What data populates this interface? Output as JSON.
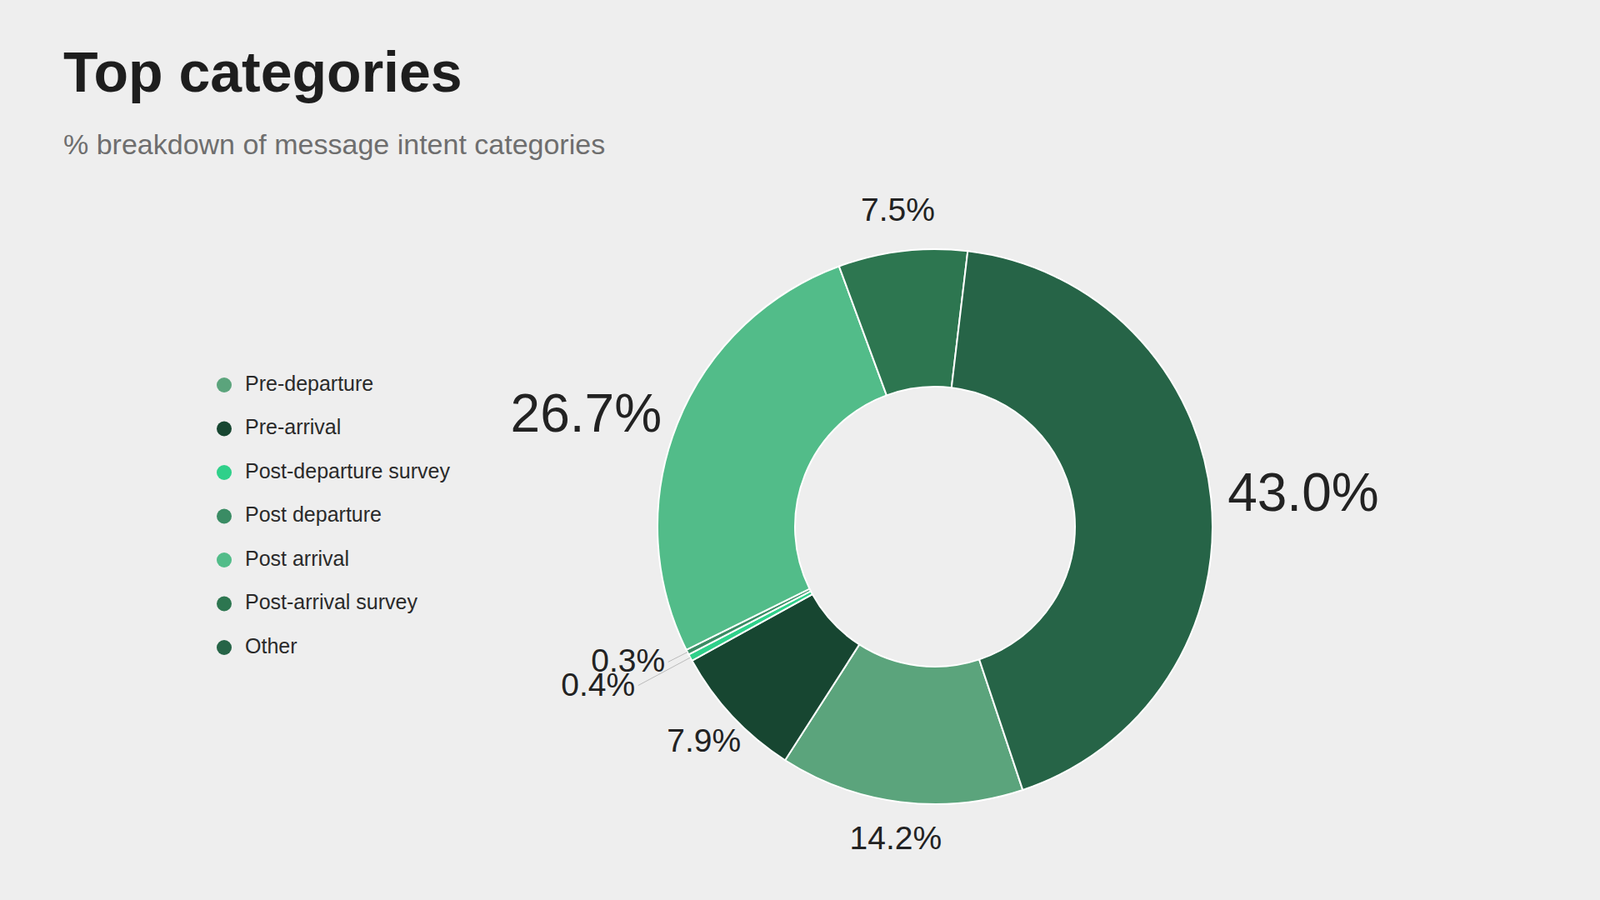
{
  "chart_data": {
    "type": "pie",
    "title": "Top categories",
    "subtitle": "% breakdown of message intent categories",
    "categories": [
      "Pre-departure",
      "Pre-arrival",
      "Post-departure survey",
      "Post departure",
      "Post arrival",
      "Post-arrival survey",
      "Other"
    ],
    "values": [
      14.2,
      7.9,
      0.4,
      0.3,
      26.7,
      7.5,
      43.0
    ],
    "value_labels": [
      "14.2%",
      "7.9%",
      "0.4%",
      "0.3%",
      "26.7%",
      "7.5%",
      "43.0%"
    ],
    "colors": [
      "#5ba47c",
      "#174631",
      "#2fd08a",
      "#3a8c64",
      "#52bc89",
      "#2d7650",
      "#266447"
    ],
    "data_labels": true,
    "legend": "left"
  }
}
